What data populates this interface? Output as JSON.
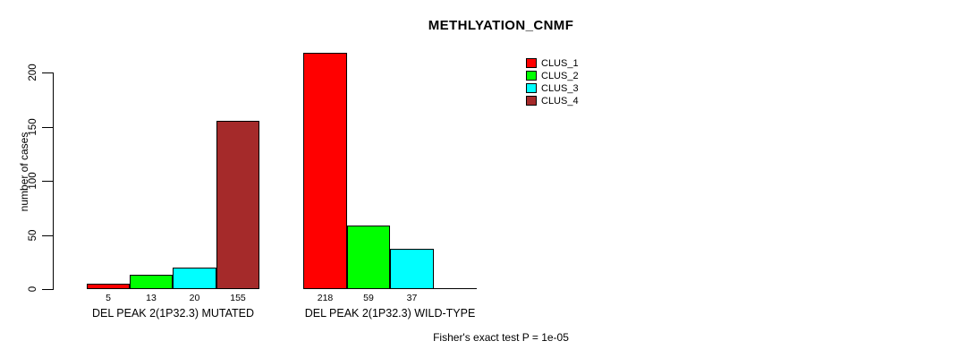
{
  "chart_data": {
    "type": "bar",
    "title": "METHLYATION_CNMF",
    "ylabel": "number of cases",
    "xlabel": "",
    "ylim": [
      0,
      200
    ],
    "yticks": [
      0,
      50,
      100,
      150,
      200
    ],
    "grid": false,
    "legend_position": "top-right",
    "series": [
      {
        "name": "CLUS_1",
        "color": "#FF0000"
      },
      {
        "name": "CLUS_2",
        "color": "#00FF00"
      },
      {
        "name": "CLUS_3",
        "color": "#00FFFF"
      },
      {
        "name": "CLUS_4",
        "color": "#A52A2A"
      }
    ],
    "groups": [
      {
        "label": "DEL PEAK 2(1P32.3) MUTATED",
        "values": [
          5,
          13,
          20,
          155
        ],
        "bar_labels": [
          "5",
          "13",
          "20",
          "155"
        ]
      },
      {
        "label": "DEL PEAK 2(1P32.3) WILD-TYPE",
        "values": [
          218,
          59,
          37,
          0
        ],
        "bar_labels": [
          "218",
          "59",
          "37",
          null
        ]
      }
    ],
    "footnote": "Fisher's exact test P = 1e-05",
    "axis_color": "#000000",
    "background": "#FFFFFF"
  }
}
